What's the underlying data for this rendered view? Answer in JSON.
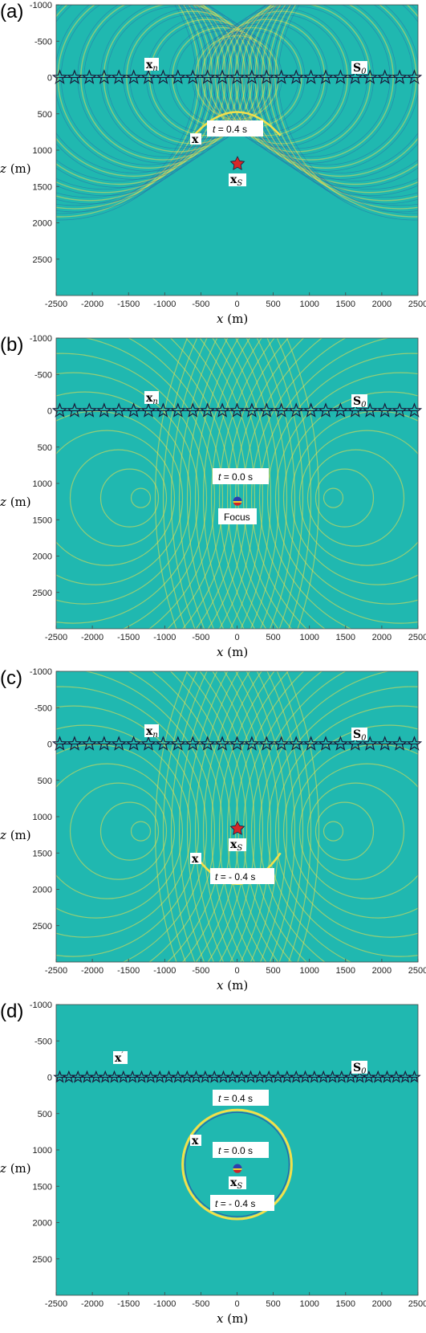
{
  "colors": {
    "background": "#20b8b0",
    "wave_bright": "#f3e04a",
    "wave_dark": "#2a60a8",
    "star_stroke": "#1a1a3a",
    "source_star": "#d62828",
    "focus_top": "#2b3fb0",
    "focus_mid": "#f2d22e",
    "focus_bottom": "#d0242a"
  },
  "axes": {
    "x_label": "x",
    "x_unit": "(m)",
    "z_label": "z",
    "z_unit": "(m)",
    "x_ticks": [
      "-2500",
      "-2000",
      "-1500",
      "-1000",
      "-500",
      "0",
      "500",
      "1000",
      "1500",
      "2000",
      "2500"
    ],
    "z_ticks": [
      "-1000",
      "-500",
      "0",
      "500",
      "1000",
      "1500",
      "2000",
      "2500"
    ]
  },
  "panels": [
    {
      "label": "(a)",
      "sym_xn": "x",
      "sym_xn_sub": "n",
      "sym_s0": "S",
      "sym_s0_sub": "0",
      "sym_x": "x",
      "sym_xs": "x",
      "sym_xs_sub": "S",
      "ann_1": "t",
      "ann_1_val": "= 0.4 s"
    },
    {
      "label": "(b)",
      "sym_xn": "x",
      "sym_xn_sub": "n",
      "sym_s0": "S",
      "sym_s0_sub": "0",
      "ann_1": "t",
      "ann_1_val": "= 0.0 s",
      "focus_label": "Focus"
    },
    {
      "label": "(c)",
      "sym_xn": "x",
      "sym_xn_sub": "n",
      "sym_s0": "S",
      "sym_s0_sub": "0",
      "sym_x": "x",
      "sym_xs": "x",
      "sym_xs_sub": "S",
      "ann_1": "t",
      "ann_1_val": "= - 0.4 s"
    },
    {
      "label": "(d)",
      "sym_xn": "x",
      "sym_xn_sub": "′",
      "sym_s0": "S",
      "sym_s0_sub": "0",
      "sym_x": "x",
      "sym_xs": "x",
      "sym_xs_sub": "S",
      "ann_1": "t",
      "ann_1_val": "= 0.4 s",
      "ann_2": "t",
      "ann_2_val": "= 0.0 s",
      "ann_3": "t",
      "ann_3_val": "= - 0.4 s"
    }
  ]
}
